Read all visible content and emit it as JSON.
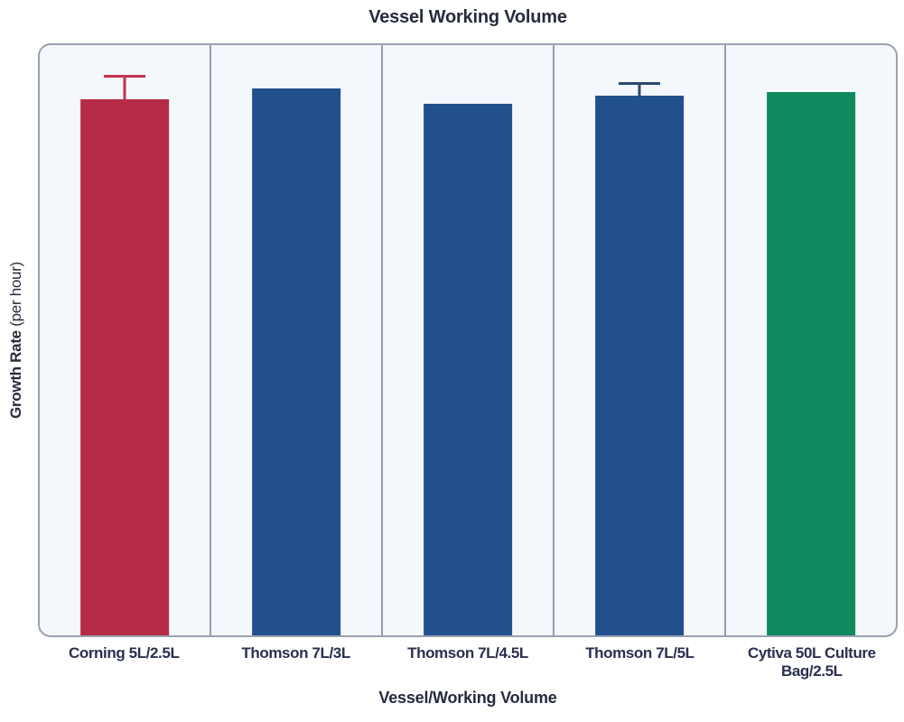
{
  "chart_data": {
    "type": "bar",
    "title": "Vessel Working Volume",
    "xlabel": "Vessel/Working Volume",
    "ylabel": "Growth Rate",
    "ylabel_unit": "(per hour)",
    "categories": [
      "Corning 5L/2.5L",
      "Thomson 7L/3L",
      "Thomson 7L/4.5L",
      "Thomson 7L/5L",
      "Cytiva 50L Culture Bag/2.5L"
    ],
    "series": [
      {
        "name": "Growth Rate",
        "values": [
          0.909,
          0.926,
          0.901,
          0.915,
          0.92
        ],
        "errors": [
          0.04,
          null,
          null,
          0.023,
          null
        ]
      }
    ],
    "ylim": [
      0,
      1
    ],
    "y_tick_labels": [],
    "grid": false,
    "legend": "none",
    "bar_colors": [
      "#B52B45",
      "#21508C",
      "#21508C",
      "#21508C",
      "#0E8A5E"
    ],
    "error_bar_colors": [
      "#C43250",
      null,
      null,
      "#2B4A6E",
      null
    ]
  },
  "style_colors": {
    "panel_background": "#F4F7FB",
    "panel_border": "#9AA2B0",
    "section_divider": "#959DAC",
    "text": "#262B3D"
  }
}
